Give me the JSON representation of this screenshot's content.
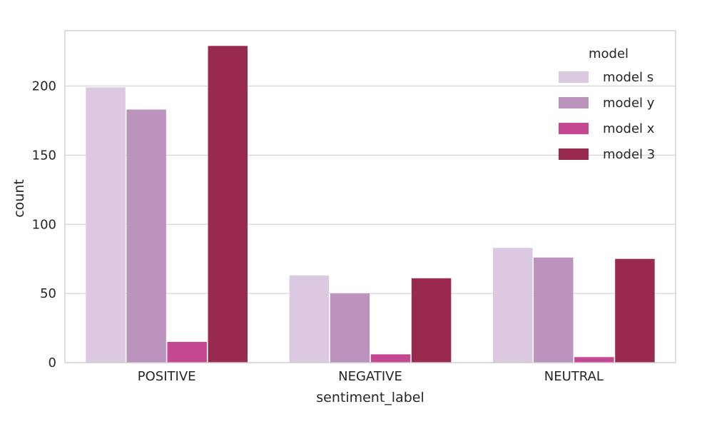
{
  "chart_data": {
    "type": "bar",
    "xlabel": "sentiment_label",
    "ylabel": "count",
    "categories": [
      "POSITIVE",
      "NEGATIVE",
      "NEUTRAL"
    ],
    "series": [
      {
        "name": "model s",
        "values": [
          199,
          63,
          83
        ],
        "color": "#dbc9e1"
      },
      {
        "name": "model y",
        "values": [
          183,
          50,
          76
        ],
        "color": "#bc93bd"
      },
      {
        "name": "model x",
        "values": [
          15,
          6,
          4
        ],
        "color": "#c54992"
      },
      {
        "name": "model 3",
        "values": [
          229,
          61,
          75
        ],
        "color": "#982a50"
      }
    ],
    "ylim": [
      0,
      240
    ],
    "yticks": [
      0,
      50,
      100,
      150,
      200
    ],
    "grid": true,
    "legend": {
      "title": "model",
      "position": "top-right"
    }
  }
}
